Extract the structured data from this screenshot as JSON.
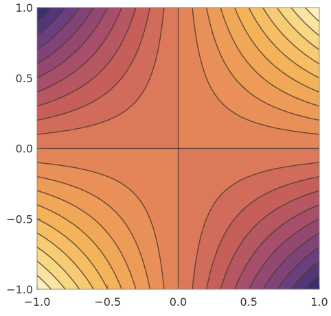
{
  "chart_data": {
    "type": "heatmap",
    "function": "x*y",
    "title": "",
    "xlabel": "",
    "ylabel": "",
    "xlim": [
      -1.0,
      1.0
    ],
    "ylim": [
      -1.0,
      1.0
    ],
    "x_ticks": [
      -1.0,
      -0.5,
      0.0,
      0.5,
      1.0
    ],
    "y_ticks": [
      -1.0,
      -0.5,
      0.0,
      0.5,
      1.0
    ],
    "x_tick_labels": [
      "−1.0",
      "−0.5",
      "0.0",
      "0.5",
      "1.0"
    ],
    "y_tick_labels": [
      "−1.0",
      "−0.5",
      "0.0",
      "0.5",
      "1.0"
    ],
    "contour_levels": [
      -0.9,
      -0.8,
      -0.7,
      -0.6,
      -0.5,
      -0.4,
      -0.3,
      -0.2,
      -0.1,
      0.0,
      0.1,
      0.2,
      0.3,
      0.4,
      0.5,
      0.6,
      0.7,
      0.8,
      0.9
    ],
    "value_range": [
      -1.0,
      1.0
    ],
    "grid": false,
    "legend": "none",
    "colormap": [
      "#2b2c6e",
      "#6a3f7d",
      "#9e4a6e",
      "#c65f5a",
      "#e17f5a",
      "#ee9b57",
      "#f5b85a",
      "#f9d884",
      "#fff6cc"
    ]
  }
}
